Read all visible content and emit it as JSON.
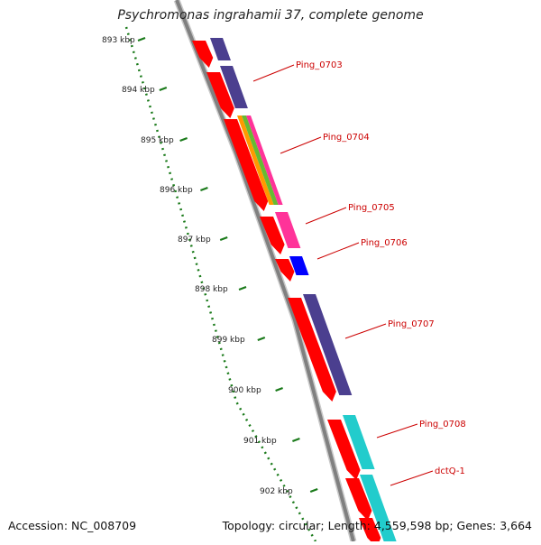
{
  "title": "Psychromonas ingrahamii 37, complete genome",
  "footer": {
    "accession": "Accession: NC_008709",
    "summary": "Topology: circular; Length: 4,559,598 bp; Genes: 3,664"
  },
  "scale_labels": [
    "893 kbp",
    "894 kbp",
    "895 kbp",
    "896 kbp",
    "897 kbp",
    "898 kbp",
    "899 kbp",
    "900 kbp",
    "901 kbp",
    "902 kbp"
  ],
  "gene_labels": [
    "Ping_0703",
    "Ping_0704",
    "Ping_0705",
    "Ping_0706",
    "Ping_0707",
    "Ping_0708",
    "dctQ-1"
  ],
  "colors": {
    "backbone": "#808080",
    "scale": "#1a7a1a",
    "cds": "#ff0000",
    "label": "#cc0000",
    "cog_purple": "#4b3f8f",
    "cog_pink": "#ff3399",
    "cog_blue": "#0000ff",
    "cog_cyan": "#22cccc"
  }
}
